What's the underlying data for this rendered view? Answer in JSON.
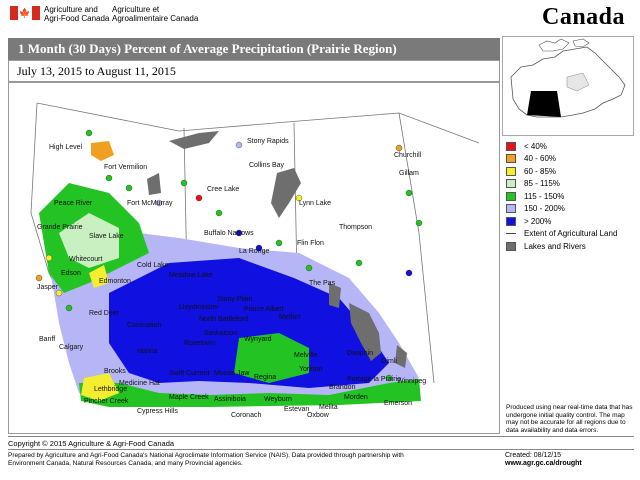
{
  "header": {
    "dept_en_line1": "Agriculture and",
    "dept_en_line2": "Agri-Food Canada",
    "dept_fr_line1": "Agriculture et",
    "dept_fr_line2": "Agroalimentaire Canada",
    "wordmark": "Canada"
  },
  "title": "1 Month (30 Days) Percent of Average Precipitation  (Prairie Region)",
  "date_range": "July 13, 2015 to August 11, 2015",
  "legend": {
    "items": [
      {
        "label": "< 40%",
        "color": "#e8101a"
      },
      {
        "label": "40 - 60%",
        "color": "#f0a020"
      },
      {
        "label": "60 - 85%",
        "color": "#f5ee30"
      },
      {
        "label": "85 - 115%",
        "color": "#c8f0c0"
      },
      {
        "label": "115 - 150%",
        "color": "#22c322"
      },
      {
        "label": "150 - 200%",
        "color": "#b6b6f6"
      },
      {
        "label": "> 200%",
        "color": "#1010e0"
      }
    ],
    "extent_label": "Extent of Agricultural Land",
    "lakes_label": "Lakes and Rivers",
    "lakes_color": "#6e6e6e"
  },
  "places": [
    "High Level",
    "Fort Vermilion",
    "Stony Rapids",
    "Churchill",
    "Collins Bay",
    "Peace River",
    "Fort McMurray",
    "Cree Lake",
    "Gillam",
    "Lynn Lake",
    "Grande Prairie",
    "Slave Lake",
    "Buffalo Narrows",
    "Thompson",
    "Whitecourt",
    "Cold Lake",
    "La Ronge",
    "Flin Flon",
    "Edson",
    "Edmonton",
    "Meadow Lake",
    "Jasper",
    "Stony Plain",
    "The Pas",
    "Lloydminster",
    "Red Deer",
    "North Battleford",
    "Prince Albert",
    "Coronation",
    "Melfort",
    "Banff",
    "Calgary",
    "Saskatoon",
    "Rosetown",
    "Hanna",
    "Wynyard",
    "Dauphin",
    "Brooks",
    "Medicine Hat",
    "Swift Current",
    "Moose Jaw",
    "Regina",
    "Melville",
    "Gimli",
    "Lethbridge",
    "Pincher Creek",
    "Maple Creek",
    "Assiniboia",
    "Yorkton",
    "Portage la Prairie",
    "Winnipeg",
    "Estevan",
    "Melita",
    "Morden",
    "Emerson",
    "Coronach",
    "Oxbow",
    "Cypress Hills",
    "Brandon",
    "Weyburn"
  ],
  "disclaimer": "Produced using near real-time data that has undergone initial quality control. The map may not be accurate for all regions due to data availability and data errors.",
  "copyright": "Copyright © 2015 Agriculture & Agri-Food Canada",
  "prepared_by": "Prepared by Agriculture and Agri-Food Canada's National Agroclimate Information Service (NAIS).  Data provided through partnership with Environment Canada, Natural Resources Canada, and many Provincial agencies.",
  "created": "Created: 08/12/15",
  "url": "www.agr.gc.ca/drought"
}
